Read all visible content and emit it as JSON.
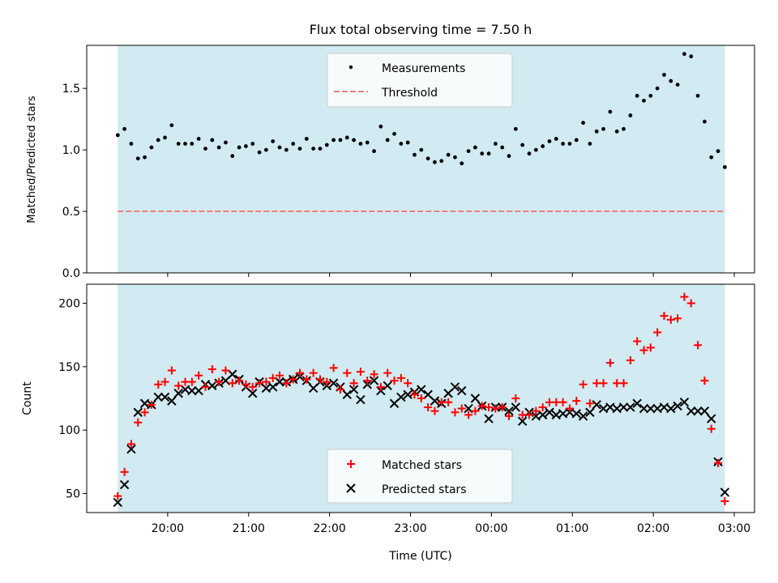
{
  "chart_data": [
    {
      "type": "scatter",
      "title": "Flux total observing time = 7.50 h",
      "xlabel": "",
      "ylabel": "Matched/Predicted stars",
      "ylim": [
        0,
        1.85
      ],
      "xlim": [
        "19:00",
        "03:15"
      ],
      "yticks": [
        "0.0",
        "0.5",
        "1.0",
        "1.5"
      ],
      "ytick_values": [
        0,
        0.5,
        1.0,
        1.5
      ],
      "observing_window": [
        "19:23",
        "02:53"
      ],
      "legend": {
        "placement": "top-center",
        "entries": [
          "Measurements",
          "Threshold"
        ]
      },
      "threshold": 0.5,
      "series": [
        {
          "name": "Measurements",
          "x": [
            "19:23",
            "19:28",
            "19:33",
            "19:38",
            "19:43",
            "19:48",
            "19:53",
            "19:58",
            "20:03",
            "20:08",
            "20:13",
            "20:18",
            "20:23",
            "20:28",
            "20:33",
            "20:38",
            "20:43",
            "20:48",
            "20:53",
            "20:58",
            "21:03",
            "21:08",
            "21:13",
            "21:18",
            "21:23",
            "21:28",
            "21:33",
            "21:38",
            "21:43",
            "21:48",
            "21:53",
            "21:58",
            "22:03",
            "22:08",
            "22:13",
            "22:18",
            "22:23",
            "22:28",
            "22:33",
            "22:38",
            "22:43",
            "22:48",
            "22:53",
            "22:58",
            "23:03",
            "23:08",
            "23:13",
            "23:18",
            "23:23",
            "23:28",
            "23:33",
            "23:38",
            "23:43",
            "23:48",
            "23:53",
            "23:58",
            "00:03",
            "00:08",
            "00:13",
            "00:18",
            "00:23",
            "00:28",
            "00:33",
            "00:38",
            "00:43",
            "00:48",
            "00:53",
            "00:58",
            "01:03",
            "01:08",
            "01:13",
            "01:18",
            "01:23",
            "01:28",
            "01:33",
            "01:38",
            "01:43",
            "01:48",
            "01:53",
            "01:58",
            "02:03",
            "02:08",
            "02:13",
            "02:18",
            "02:23",
            "02:28",
            "02:33",
            "02:38",
            "02:43",
            "02:48",
            "02:53"
          ],
          "y": [
            1.12,
            1.17,
            1.05,
            0.93,
            0.94,
            1.02,
            1.08,
            1.1,
            1.2,
            1.05,
            1.05,
            1.05,
            1.09,
            1.01,
            1.08,
            1.02,
            1.06,
            0.95,
            1.02,
            1.03,
            1.05,
            0.98,
            1.0,
            1.07,
            1.02,
            1.0,
            1.05,
            1.01,
            1.09,
            1.01,
            1.01,
            1.04,
            1.08,
            1.08,
            1.1,
            1.08,
            1.05,
            1.06,
            0.99,
            1.19,
            1.08,
            1.13,
            1.05,
            1.06,
            0.96,
            1.0,
            0.93,
            0.9,
            0.91,
            0.96,
            0.94,
            0.89,
            0.99,
            1.02,
            0.97,
            0.97,
            1.05,
            1.02,
            0.95,
            1.17,
            1.04,
            0.97,
            1.0,
            1.03,
            1.07,
            1.09,
            1.05,
            1.05,
            1.08,
            1.22,
            1.05,
            1.15,
            1.17,
            1.31,
            1.15,
            1.17,
            1.28,
            1.44,
            1.4,
            1.44,
            1.5,
            1.61,
            1.56,
            1.53,
            1.78,
            1.76,
            1.44,
            1.23,
            0.94,
            0.99,
            0.86
          ]
        },
        {
          "name": "Threshold",
          "x": [
            "19:23",
            "02:53"
          ],
          "y": [
            0.5,
            0.5
          ]
        }
      ]
    },
    {
      "type": "scatter",
      "title": "",
      "xlabel": "Time (UTC)",
      "ylabel": "Count",
      "ylim": [
        35,
        215
      ],
      "xlim": [
        "19:00",
        "03:15"
      ],
      "xticks": [
        "20:00",
        "21:00",
        "22:00",
        "23:00",
        "00:00",
        "01:00",
        "02:00",
        "03:00"
      ],
      "yticks": [
        "50",
        "100",
        "150",
        "200"
      ],
      "ytick_values": [
        50,
        100,
        150,
        200
      ],
      "observing_window": [
        "19:23",
        "02:53"
      ],
      "legend": {
        "placement": "bottom-center",
        "entries": [
          "Matched stars",
          "Predicted stars"
        ]
      },
      "series": [
        {
          "name": "Matched stars",
          "x": [
            "19:23",
            "19:28",
            "19:33",
            "19:38",
            "19:43",
            "19:48",
            "19:53",
            "19:58",
            "20:03",
            "20:08",
            "20:13",
            "20:18",
            "20:23",
            "20:28",
            "20:33",
            "20:38",
            "20:43",
            "20:48",
            "20:53",
            "20:58",
            "21:03",
            "21:08",
            "21:13",
            "21:18",
            "21:23",
            "21:28",
            "21:33",
            "21:38",
            "21:43",
            "21:48",
            "21:53",
            "21:58",
            "22:03",
            "22:08",
            "22:13",
            "22:18",
            "22:23",
            "22:28",
            "22:33",
            "22:38",
            "22:43",
            "22:48",
            "22:53",
            "22:58",
            "23:03",
            "23:08",
            "23:13",
            "23:18",
            "23:23",
            "23:28",
            "23:33",
            "23:38",
            "23:43",
            "23:48",
            "23:53",
            "23:58",
            "00:03",
            "00:08",
            "00:13",
            "00:18",
            "00:23",
            "00:28",
            "00:33",
            "00:38",
            "00:43",
            "00:48",
            "00:53",
            "00:58",
            "01:03",
            "01:08",
            "01:13",
            "01:18",
            "01:23",
            "01:28",
            "01:33",
            "01:38",
            "01:43",
            "01:48",
            "01:53",
            "01:58",
            "02:03",
            "02:08",
            "02:13",
            "02:18",
            "02:23",
            "02:28",
            "02:33",
            "02:38",
            "02:43",
            "02:48",
            "02:53"
          ],
          "y": [
            48,
            67,
            89,
            106,
            114,
            120,
            136,
            138,
            147,
            135,
            138,
            138,
            143,
            134,
            148,
            138,
            147,
            137,
            139,
            136,
            134,
            137,
            138,
            141,
            143,
            137,
            140,
            145,
            140,
            145,
            140,
            138,
            149,
            132,
            145,
            137,
            146,
            139,
            144,
            134,
            145,
            139,
            141,
            137,
            128,
            125,
            118,
            115,
            122,
            122,
            114,
            117,
            112,
            115,
            119,
            118,
            117,
            118,
            111,
            125,
            112,
            112,
            115,
            118,
            122,
            122,
            122,
            117,
            123,
            136,
            121,
            137,
            137,
            153,
            137,
            137,
            155,
            170,
            163,
            165,
            177,
            190,
            187,
            188,
            205,
            200,
            167,
            139,
            101,
            74,
            44
          ]
        },
        {
          "name": "Predicted stars",
          "x": [
            "19:23",
            "19:28",
            "19:33",
            "19:38",
            "19:43",
            "19:48",
            "19:53",
            "19:58",
            "20:03",
            "20:08",
            "20:13",
            "20:18",
            "20:23",
            "20:28",
            "20:33",
            "20:38",
            "20:43",
            "20:48",
            "20:53",
            "20:58",
            "21:03",
            "21:08",
            "21:13",
            "21:18",
            "21:23",
            "21:28",
            "21:33",
            "21:38",
            "21:43",
            "21:48",
            "21:53",
            "21:58",
            "22:03",
            "22:08",
            "22:13",
            "22:18",
            "22:23",
            "22:28",
            "22:33",
            "22:38",
            "22:43",
            "22:48",
            "22:53",
            "22:58",
            "23:03",
            "23:08",
            "23:13",
            "23:18",
            "23:23",
            "23:28",
            "23:33",
            "23:38",
            "23:43",
            "23:48",
            "23:53",
            "23:58",
            "00:03",
            "00:08",
            "00:13",
            "00:18",
            "00:23",
            "00:28",
            "00:33",
            "00:38",
            "00:43",
            "00:48",
            "00:53",
            "00:58",
            "01:03",
            "01:08",
            "01:13",
            "01:18",
            "01:23",
            "01:28",
            "01:33",
            "01:38",
            "01:43",
            "01:48",
            "01:53",
            "01:58",
            "02:03",
            "02:08",
            "02:13",
            "02:18",
            "02:23",
            "02:28",
            "02:33",
            "02:38",
            "02:43",
            "02:48",
            "02:53"
          ],
          "y": [
            43,
            57,
            85,
            114,
            121,
            120,
            126,
            126,
            123,
            129,
            132,
            131,
            131,
            136,
            135,
            137,
            139,
            144,
            140,
            134,
            129,
            138,
            133,
            134,
            138,
            138,
            140,
            142,
            139,
            133,
            138,
            135,
            137,
            134,
            128,
            132,
            124,
            136,
            139,
            131,
            135,
            121,
            126,
            128,
            130,
            132,
            128,
            123,
            121,
            129,
            134,
            131,
            117,
            125,
            119,
            109,
            118,
            118,
            115,
            118,
            107,
            114,
            111,
            112,
            114,
            112,
            113,
            114,
            113,
            111,
            114,
            120,
            117,
            118,
            117,
            118,
            118,
            121,
            117,
            117,
            117,
            118,
            117,
            119,
            122,
            115,
            115,
            115,
            109,
            75,
            51
          ]
        }
      ]
    }
  ],
  "colors": {
    "observing_band": "#add8e6",
    "measurements": "#000000",
    "threshold": "#f08080",
    "matched": "#ff0000",
    "predicted": "#000000"
  }
}
